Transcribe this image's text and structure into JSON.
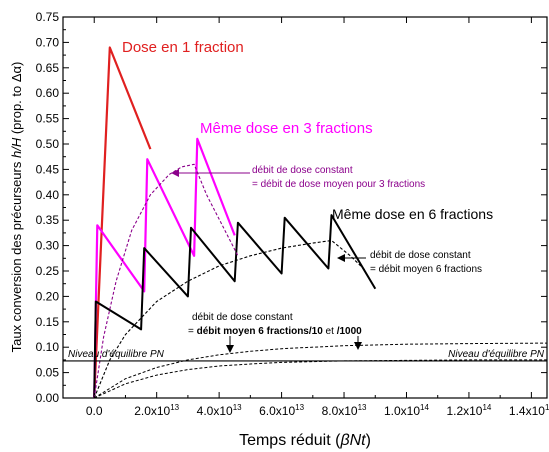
{
  "chart_data": {
    "type": "line",
    "xlabel_main": "Temps réduit (",
    "xlabel_sym": "βNt",
    "xlabel_end": ")",
    "ylabel_main": "Taux conversion des précurseurs ",
    "ylabel_sym": "h/H",
    "ylabel_end": " (prop. to Δα)",
    "xlim": [
      -10000000000000.0,
      145000000000000.0
    ],
    "ylim": [
      0.0,
      0.75
    ],
    "x_ticks": [
      {
        "value": 0,
        "label": "0.0"
      },
      {
        "value": 20000000000000.0,
        "label": "2.0x10",
        "exp": "13"
      },
      {
        "value": 40000000000000.0,
        "label": "4.0x10",
        "exp": "13"
      },
      {
        "value": 60000000000000.0,
        "label": "6.0x10",
        "exp": "13"
      },
      {
        "value": 80000000000000.0,
        "label": "8.0x10",
        "exp": "13"
      },
      {
        "value": 100000000000000.0,
        "label": "1.0x10",
        "exp": "14"
      },
      {
        "value": 120000000000000.0,
        "label": "1.2x10",
        "exp": "14"
      },
      {
        "value": 140000000000000.0,
        "label": "1.4x10",
        "exp": "14"
      }
    ],
    "y_ticks": [
      {
        "value": 0,
        "label": "0.00"
      },
      {
        "value": 0.05,
        "label": "0.05"
      },
      {
        "value": 0.1,
        "label": "0.10"
      },
      {
        "value": 0.15,
        "label": "0.15"
      },
      {
        "value": 0.2,
        "label": "0.20"
      },
      {
        "value": 0.25,
        "label": "0.25"
      },
      {
        "value": 0.3,
        "label": "0.30"
      },
      {
        "value": 0.35,
        "label": "0.35"
      },
      {
        "value": 0.4,
        "label": "0.40"
      },
      {
        "value": 0.45,
        "label": "0.45"
      },
      {
        "value": 0.5,
        "label": "0.50"
      },
      {
        "value": 0.55,
        "label": "0.55"
      },
      {
        "value": 0.6,
        "label": "0.60"
      },
      {
        "value": 0.65,
        "label": "0.65"
      },
      {
        "value": 0.7,
        "label": "0.70"
      },
      {
        "value": 0.75,
        "label": "0.75"
      }
    ],
    "series": [
      {
        "color": "#e02020",
        "dash": false,
        "width": 2.2,
        "x": [
          0,
          5000000000000.0,
          18000000000000.0
        ],
        "y": [
          0,
          0.69,
          0.49
        ]
      },
      {
        "color": "#ff00ff",
        "dash": false,
        "width": 2.2,
        "x": [
          0,
          1000000000000.0,
          16000000000000.0,
          17000000000000.0,
          32000000000000.0,
          33000000000000.0,
          45000000000000.0
        ],
        "y": [
          0,
          0.34,
          0.21,
          0.47,
          0.28,
          0.51,
          0.32
        ]
      },
      {
        "color": "#000000",
        "dash": false,
        "width": 2.0,
        "x": [
          0,
          500000000000.0,
          15000000000000.0,
          16000000000000.0,
          30000000000000.0,
          31000000000000.0,
          45000000000000.0,
          46000000000000.0,
          60000000000000.0,
          61000000000000.0,
          75000000000000.0,
          76000000000000.0,
          90000000000000.0
        ],
        "y": [
          0,
          0.19,
          0.135,
          0.295,
          0.2,
          0.335,
          0.23,
          0.345,
          0.245,
          0.355,
          0.255,
          0.36,
          0.215
        ]
      },
      {
        "color": "#8b008b",
        "dash": true,
        "width": 1.1,
        "x": [
          0,
          3000000000000.0,
          7000000000000.0,
          12000000000000.0,
          18000000000000.0,
          24000000000000.0,
          28000000000000.0,
          32000000000000.0,
          36000000000000.0,
          41000000000000.0,
          46000000000000.0
        ],
        "y": [
          0,
          0.12,
          0.23,
          0.33,
          0.4,
          0.44,
          0.455,
          0.46,
          0.4,
          0.34,
          0.28
        ]
      },
      {
        "color": "#000000",
        "dash": true,
        "width": 1.1,
        "x": [
          0,
          5000000000000.0,
          10000000000000.0,
          20000000000000.0,
          30000000000000.0,
          40000000000000.0,
          50000000000000.0,
          60000000000000.0,
          70000000000000.0,
          76000000000000.0,
          82000000000000.0,
          87000000000000.0
        ],
        "y": [
          0,
          0.075,
          0.125,
          0.19,
          0.23,
          0.26,
          0.28,
          0.295,
          0.305,
          0.31,
          0.28,
          0.25
        ]
      },
      {
        "color": "#000000",
        "dash": true,
        "width": 1.0,
        "x": [
          0,
          10000000000000.0,
          20000000000000.0,
          30000000000000.0,
          40000000000000.0,
          50000000000000.0,
          60000000000000.0,
          80000000000000.0,
          100000000000000.0,
          120000000000000.0,
          145000000000000.0
        ],
        "y": [
          0,
          0.038,
          0.06,
          0.075,
          0.085,
          0.092,
          0.097,
          0.103,
          0.106,
          0.107,
          0.108
        ]
      },
      {
        "color": "#000000",
        "dash": true,
        "width": 1.0,
        "x": [
          0,
          10000000000000.0,
          20000000000000.0,
          30000000000000.0,
          40000000000000.0,
          50000000000000.0,
          60000000000000.0,
          80000000000000.0,
          100000000000000.0,
          120000000000000.0,
          145000000000000.0
        ],
        "y": [
          0,
          0.028,
          0.045,
          0.056,
          0.063,
          0.067,
          0.07,
          0.073,
          0.074,
          0.075,
          0.075
        ]
      },
      {
        "color": "#000000",
        "dash": false,
        "width": 1.1,
        "x": [
          -10000000000000.0,
          145000000000000.0
        ],
        "y": [
          0.073,
          0.073
        ]
      }
    ],
    "annotations": {
      "dose1": {
        "text": "Dose en 1 fraction",
        "color": "#e02020"
      },
      "dose3": {
        "text": "Même dose en 3 fractions",
        "color": "#ff00ff"
      },
      "dose6": {
        "text": "Même dose en 6 fractions",
        "color": "#000000"
      },
      "debit3_line1": {
        "text": "débit de dose constant",
        "color": "#8b008b"
      },
      "debit3_line2": {
        "text": "= débit de dose moyen pour 3 fractions",
        "color": "#8b008b"
      },
      "debit6_line1": {
        "text": "débit de dose constant",
        "color": "#000000"
      },
      "debit6_line2": {
        "text": "= débit moyen 6 fractions",
        "color": "#000000"
      },
      "debit10_line1": {
        "text": "débit de dose constant",
        "color": "#000000"
      },
      "debit10_prefix": "= ",
      "debit10_bold": "débit moyen 6 fractions/10",
      "debit10_mid": " et ",
      "debit10_end": "/1000",
      "niveau_left": {
        "text": "Niveau d'équilibre PN"
      },
      "niveau_right": {
        "text": "Niveau d'équilibre PN"
      }
    }
  }
}
